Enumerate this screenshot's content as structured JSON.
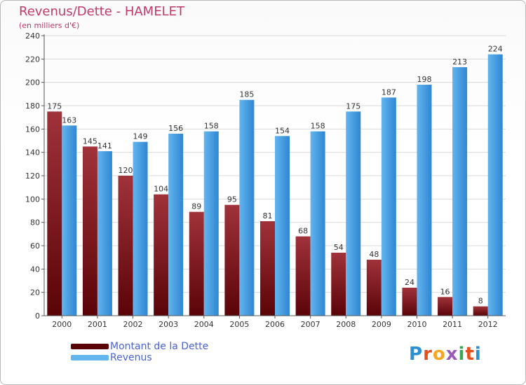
{
  "title": "Revenus/Dette - HAMELET",
  "subtitle": "(en milliers d'€)",
  "logo_letters": [
    {
      "ch": "P",
      "color": "#2b8fd4"
    },
    {
      "ch": "r",
      "color": "#e84e1b"
    },
    {
      "ch": "o",
      "color": "#f5a623"
    },
    {
      "ch": "x",
      "color": "#9b59b6"
    },
    {
      "ch": "i",
      "color": "#3aa655"
    },
    {
      "ch": "t",
      "color": "#e84e1b"
    },
    {
      "ch": "i",
      "color": "#2b8fd4"
    }
  ],
  "colors": {
    "debt_dark": "#5a0408",
    "debt_light": "#a0323a",
    "rev_dark": "#2f86d2",
    "rev_light": "#63b5ee",
    "axis": "#555555",
    "grid": "#d9d9d9",
    "text": "#333333"
  },
  "chart_data": {
    "type": "bar",
    "categories": [
      "2000",
      "2001",
      "2002",
      "2003",
      "2004",
      "2005",
      "2006",
      "2007",
      "2008",
      "2009",
      "2010",
      "2011",
      "2012"
    ],
    "series": [
      {
        "name": "Montant de la Dette",
        "values": [
          175,
          145,
          120,
          104,
          89,
          95,
          81,
          68,
          54,
          48,
          24,
          16,
          8
        ]
      },
      {
        "name": "Revenus",
        "values": [
          163,
          141,
          149,
          156,
          158,
          185,
          154,
          158,
          175,
          187,
          198,
          213,
          224
        ]
      }
    ],
    "ylim": [
      0,
      240
    ],
    "yticks": [
      0,
      20,
      40,
      60,
      80,
      100,
      120,
      140,
      160,
      180,
      200,
      220,
      240
    ],
    "grid": true,
    "legend_position": "bottom-left"
  }
}
